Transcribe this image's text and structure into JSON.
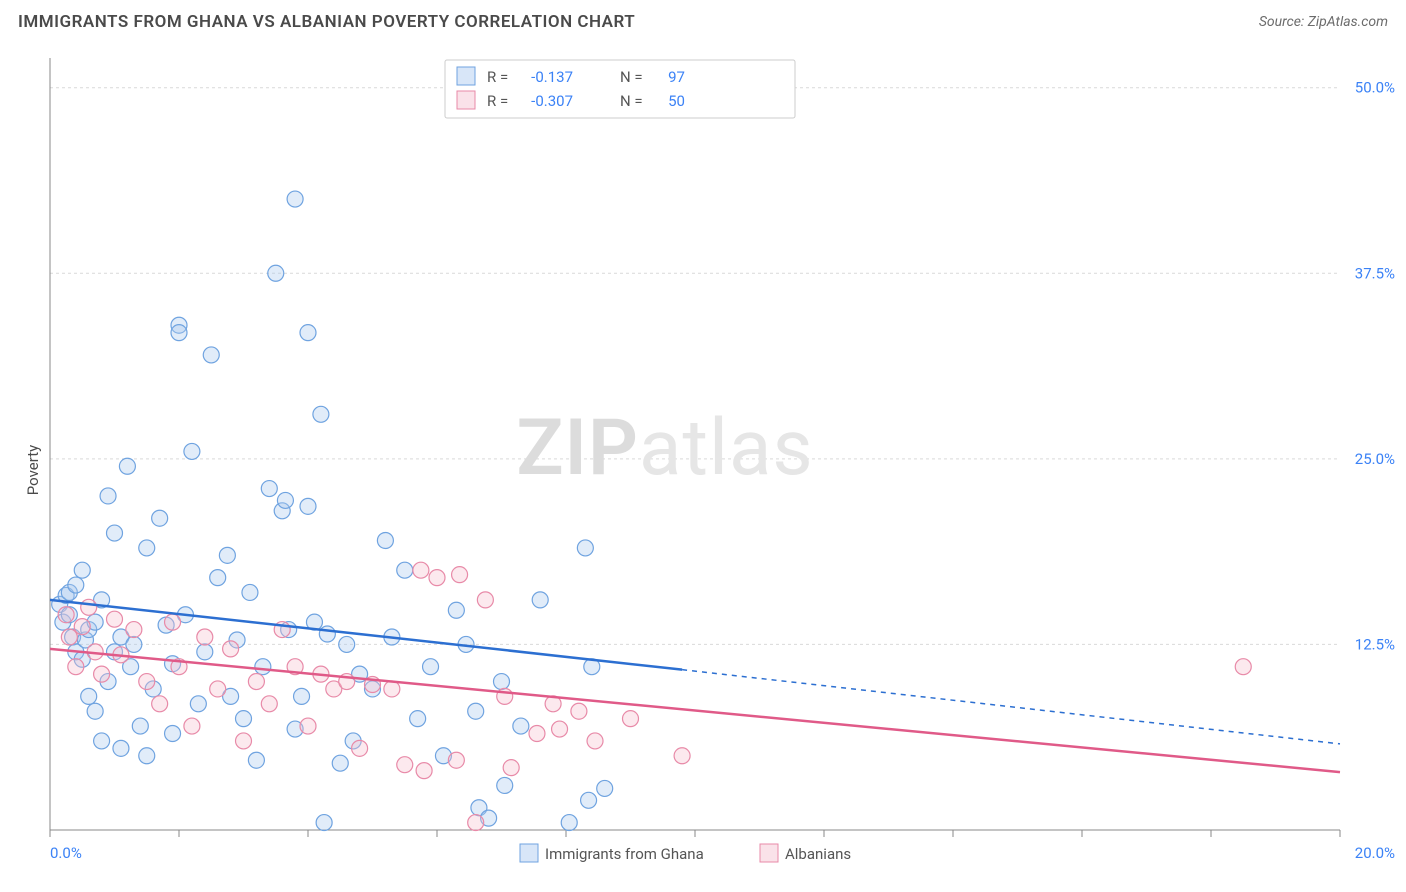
{
  "header": {
    "title": "IMMIGRANTS FROM GHANA VS ALBANIAN POVERTY CORRELATION CHART",
    "source": "Source: ZipAtlas.com"
  },
  "ylabel": "Poverty",
  "watermark": {
    "bold": "ZIP",
    "rest": "atlas"
  },
  "chart": {
    "type": "scatter",
    "background_color": "#ffffff",
    "grid_color": "#d9d9d9",
    "axis_color": "#888888",
    "xlim": [
      0,
      20
    ],
    "ylim": [
      0,
      52
    ],
    "xticks": [
      0,
      2,
      4,
      6,
      8,
      10,
      12,
      14,
      16,
      18,
      20
    ],
    "xtick_labels": {
      "0": "0.0%",
      "20": "20.0%"
    },
    "yticks": [
      12.5,
      25.0,
      37.5,
      50.0
    ],
    "ytick_labels": [
      "12.5%",
      "25.0%",
      "37.5%",
      "50.0%"
    ],
    "marker_radius": 8,
    "series_a": {
      "name": "Immigrants from Ghana",
      "color_fill": "#a9c8ef",
      "color_stroke": "#6fa3e0",
      "trend_color": "#2c6fd1",
      "R": "-0.137",
      "N": "97",
      "trend": {
        "x1": 0,
        "y1": 15.5,
        "x2": 9.8,
        "y2": 10.8,
        "ext_x2": 20,
        "ext_y2": 5.8
      },
      "points": [
        [
          0.15,
          15.2
        ],
        [
          0.2,
          14.0
        ],
        [
          0.25,
          15.8
        ],
        [
          0.3,
          14.5
        ],
        [
          0.3,
          16.0
        ],
        [
          0.35,
          13.0
        ],
        [
          0.4,
          16.5
        ],
        [
          0.4,
          12.0
        ],
        [
          0.5,
          17.5
        ],
        [
          0.5,
          11.5
        ],
        [
          0.55,
          12.8
        ],
        [
          0.6,
          13.5
        ],
        [
          0.6,
          9.0
        ],
        [
          0.7,
          14.0
        ],
        [
          0.7,
          8.0
        ],
        [
          0.8,
          6.0
        ],
        [
          0.8,
          15.5
        ],
        [
          0.9,
          22.5
        ],
        [
          0.9,
          10.0
        ],
        [
          1.0,
          12.0
        ],
        [
          1.0,
          20.0
        ],
        [
          1.1,
          13.0
        ],
        [
          1.1,
          5.5
        ],
        [
          1.2,
          24.5
        ],
        [
          1.25,
          11.0
        ],
        [
          1.3,
          12.5
        ],
        [
          1.4,
          7.0
        ],
        [
          1.5,
          19.0
        ],
        [
          1.5,
          5.0
        ],
        [
          1.6,
          9.5
        ],
        [
          1.7,
          21.0
        ],
        [
          1.8,
          13.8
        ],
        [
          1.9,
          11.2
        ],
        [
          1.9,
          6.5
        ],
        [
          2.0,
          34.0
        ],
        [
          2.0,
          33.5
        ],
        [
          2.1,
          14.5
        ],
        [
          2.2,
          25.5
        ],
        [
          2.3,
          8.5
        ],
        [
          2.4,
          12.0
        ],
        [
          2.5,
          32.0
        ],
        [
          2.6,
          17.0
        ],
        [
          2.75,
          18.5
        ],
        [
          2.8,
          9.0
        ],
        [
          2.9,
          12.8
        ],
        [
          3.0,
          7.5
        ],
        [
          3.1,
          16.0
        ],
        [
          3.2,
          4.7
        ],
        [
          3.3,
          11.0
        ],
        [
          3.4,
          23.0
        ],
        [
          3.5,
          37.5
        ],
        [
          3.6,
          21.5
        ],
        [
          3.65,
          22.2
        ],
        [
          3.7,
          13.5
        ],
        [
          3.8,
          42.5
        ],
        [
          3.8,
          6.8
        ],
        [
          3.9,
          9.0
        ],
        [
          4.0,
          21.8
        ],
        [
          4.0,
          33.5
        ],
        [
          4.1,
          14.0
        ],
        [
          4.2,
          28.0
        ],
        [
          4.25,
          0.5
        ],
        [
          4.3,
          13.2
        ],
        [
          4.5,
          4.5
        ],
        [
          4.6,
          12.5
        ],
        [
          4.7,
          6.0
        ],
        [
          4.8,
          10.5
        ],
        [
          5.0,
          9.5
        ],
        [
          5.2,
          19.5
        ],
        [
          5.3,
          13.0
        ],
        [
          5.5,
          17.5
        ],
        [
          5.7,
          7.5
        ],
        [
          5.9,
          11.0
        ],
        [
          6.1,
          5.0
        ],
        [
          6.3,
          14.8
        ],
        [
          6.45,
          12.5
        ],
        [
          6.6,
          8.0
        ],
        [
          6.65,
          1.5
        ],
        [
          6.8,
          0.8
        ],
        [
          7.0,
          10.0
        ],
        [
          7.05,
          3.0
        ],
        [
          7.3,
          7.0
        ],
        [
          7.6,
          15.5
        ],
        [
          8.05,
          0.5
        ],
        [
          8.3,
          19.0
        ],
        [
          8.35,
          2.0
        ],
        [
          8.4,
          11.0
        ],
        [
          8.6,
          2.8
        ]
      ]
    },
    "series_b": {
      "name": "Albanians",
      "color_fill": "#f5bfcf",
      "color_stroke": "#e88aa8",
      "trend_color": "#e05a88",
      "R": "-0.307",
      "N": "50",
      "trend": {
        "x1": 0,
        "y1": 12.2,
        "x2": 20,
        "y2": 3.9
      },
      "points": [
        [
          0.25,
          14.5
        ],
        [
          0.3,
          13.0
        ],
        [
          0.4,
          11.0
        ],
        [
          0.5,
          13.7
        ],
        [
          0.6,
          15.0
        ],
        [
          0.7,
          12.0
        ],
        [
          0.8,
          10.5
        ],
        [
          1.0,
          14.2
        ],
        [
          1.1,
          11.8
        ],
        [
          1.3,
          13.5
        ],
        [
          1.5,
          10.0
        ],
        [
          1.7,
          8.5
        ],
        [
          1.9,
          14.0
        ],
        [
          2.0,
          11.0
        ],
        [
          2.2,
          7.0
        ],
        [
          2.4,
          13.0
        ],
        [
          2.6,
          9.5
        ],
        [
          2.8,
          12.2
        ],
        [
          3.0,
          6.0
        ],
        [
          3.2,
          10.0
        ],
        [
          3.4,
          8.5
        ],
        [
          3.6,
          13.5
        ],
        [
          3.8,
          11.0
        ],
        [
          4.0,
          7.0
        ],
        [
          4.2,
          10.5
        ],
        [
          4.4,
          9.5
        ],
        [
          4.6,
          10.0
        ],
        [
          4.8,
          5.5
        ],
        [
          5.0,
          9.8
        ],
        [
          5.3,
          9.5
        ],
        [
          5.5,
          4.4
        ],
        [
          5.75,
          17.5
        ],
        [
          5.8,
          4.0
        ],
        [
          6.0,
          17.0
        ],
        [
          6.3,
          4.7
        ],
        [
          6.35,
          17.2
        ],
        [
          6.6,
          0.5
        ],
        [
          6.75,
          15.5
        ],
        [
          7.05,
          9.0
        ],
        [
          7.15,
          4.2
        ],
        [
          7.55,
          6.5
        ],
        [
          7.8,
          8.5
        ],
        [
          7.9,
          6.8
        ],
        [
          8.2,
          8.0
        ],
        [
          8.45,
          6.0
        ],
        [
          9.0,
          7.5
        ],
        [
          9.8,
          5.0
        ],
        [
          18.5,
          11.0
        ]
      ]
    }
  },
  "legend_top": {
    "R_label": "R =",
    "N_label": "N ="
  },
  "bottom_legend": {
    "a": "Immigrants from Ghana",
    "b": "Albanians"
  }
}
